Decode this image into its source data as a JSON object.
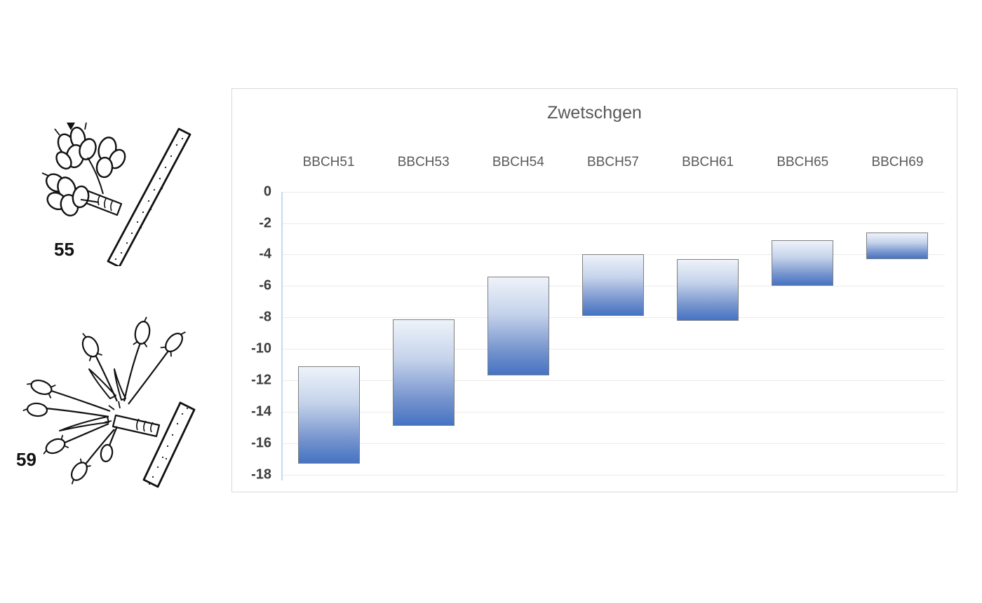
{
  "illustrations": {
    "fig55": {
      "label": "55"
    },
    "fig59": {
      "label": "59"
    }
  },
  "chart_data": {
    "type": "bar",
    "variant": "floating-range-bars",
    "title": "Zwetschgen",
    "categories": [
      "BBCH51",
      "BBCH53",
      "BBCH54",
      "BBCH57",
      "BBCH61",
      "BBCH65",
      "BBCH69"
    ],
    "bars": [
      {
        "category": "BBCH51",
        "upper": -11.1,
        "lower": -17.3
      },
      {
        "category": "BBCH53",
        "upper": -8.1,
        "lower": -14.9
      },
      {
        "category": "BBCH54",
        "upper": -5.4,
        "lower": -11.7
      },
      {
        "category": "BBCH57",
        "upper": -4.0,
        "lower": -7.9
      },
      {
        "category": "BBCH61",
        "upper": -4.3,
        "lower": -8.2
      },
      {
        "category": "BBCH65",
        "upper": -3.1,
        "lower": -6.0
      },
      {
        "category": "BBCH69",
        "upper": -2.6,
        "lower": -4.3
      }
    ],
    "ylim": [
      0,
      -18
    ],
    "yticks": [
      0,
      -2,
      -4,
      -6,
      -8,
      -10,
      -12,
      -14,
      -16,
      -18
    ],
    "grid": "horizontal",
    "legend": "none",
    "xlabel": "",
    "ylabel": "",
    "category_labels_position": "top",
    "colors": {
      "bar_gradient_top": "#eef3fa",
      "bar_gradient_bottom": "#4472c4",
      "bar_border": "#7f7f7f",
      "axis_line": "#c5d9ee",
      "gridline": "#ebebeb",
      "title": "#595959",
      "category_label": "#595959",
      "tick_label": "#3d3d3d",
      "chart_border": "#d9d9d9"
    }
  }
}
